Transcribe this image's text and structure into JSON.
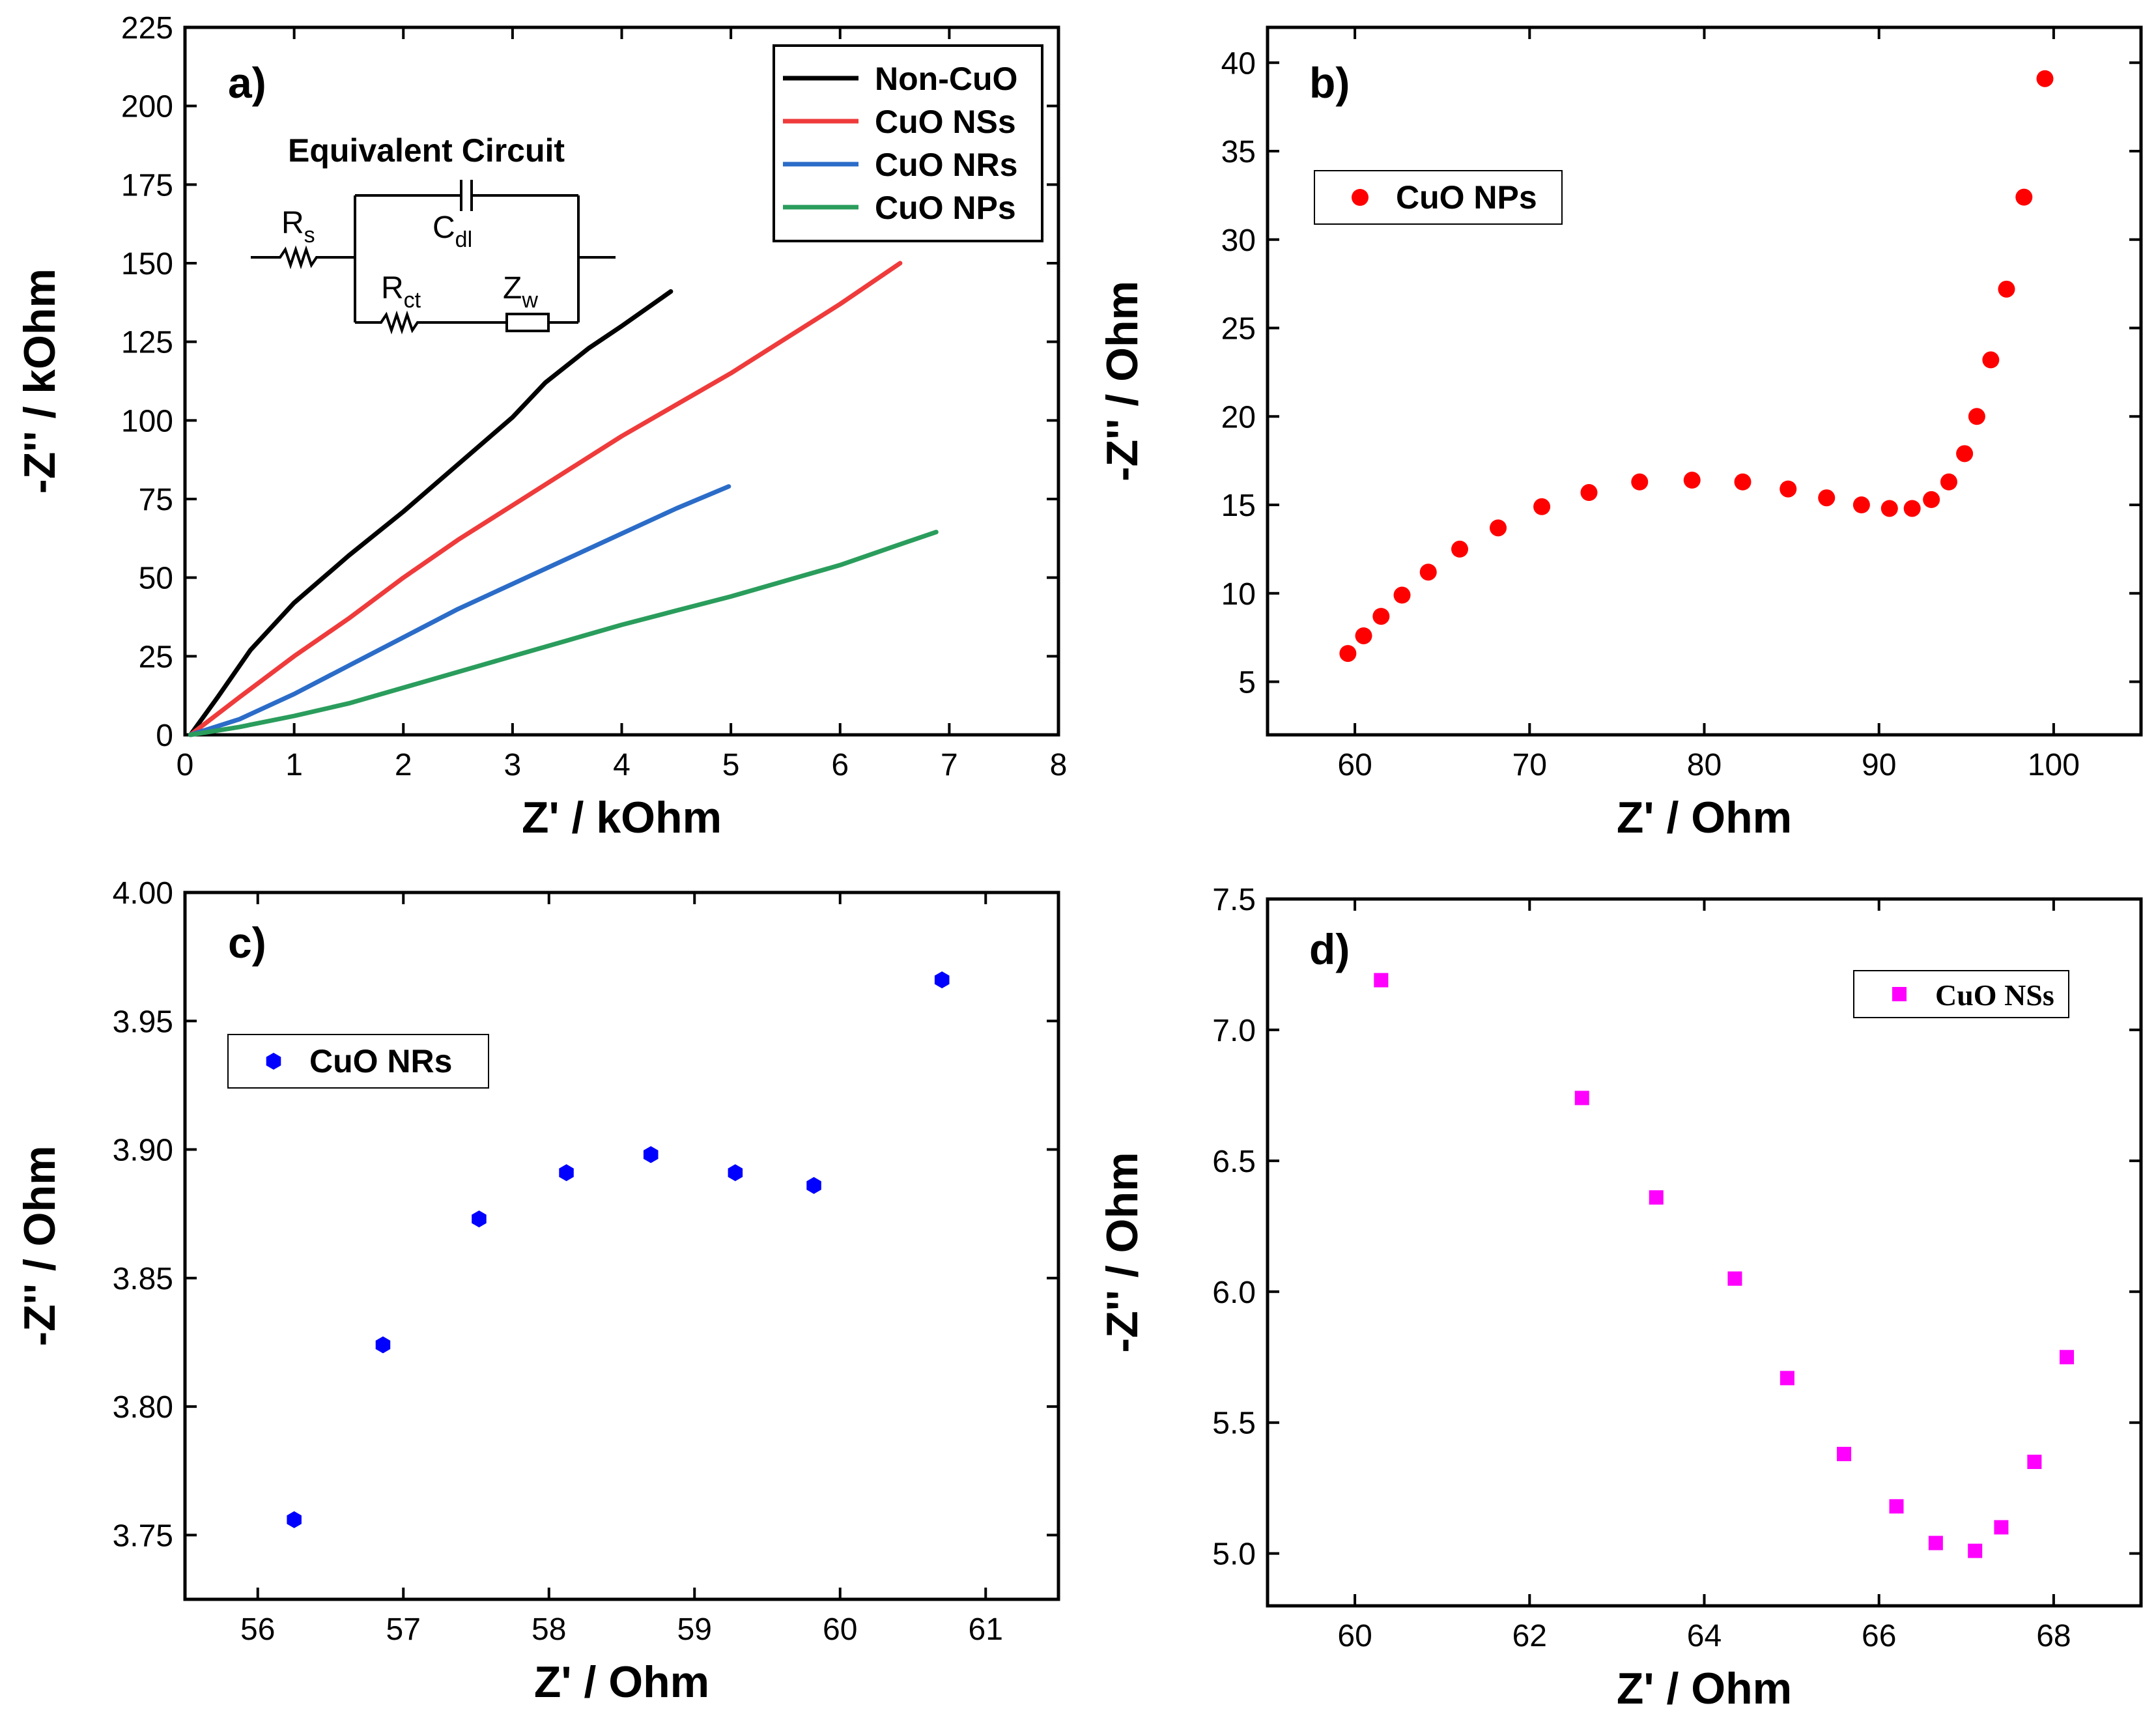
{
  "chart_data": [
    {
      "id": "a",
      "type": "line",
      "panel_label": "a)",
      "xlabel": "Z' / kOhm",
      "ylabel": "-Z'' / kOhm",
      "xlim": [
        0,
        8
      ],
      "ylim": [
        0,
        225
      ],
      "xticks": [
        0,
        1,
        2,
        3,
        4,
        5,
        6,
        7,
        8
      ],
      "yticks": [
        0,
        25,
        50,
        75,
        100,
        125,
        150,
        175,
        200,
        225
      ],
      "legend_position": "top-right",
      "series": [
        {
          "name": "Non-CuO",
          "color": "#000000",
          "x": [
            0.05,
            0.3,
            0.6,
            1.0,
            1.5,
            2.0,
            2.5,
            3.0,
            3.3,
            3.7,
            4.0,
            4.45
          ],
          "y": [
            0,
            12,
            27,
            42,
            57,
            71,
            86,
            101,
            112,
            123,
            130,
            141
          ]
        },
        {
          "name": "CuO NSs",
          "color": "#ef3b3b",
          "x": [
            0.05,
            0.5,
            1.0,
            1.5,
            2.0,
            2.5,
            3.0,
            3.5,
            4.0,
            4.5,
            5.0,
            5.5,
            6.0,
            6.55
          ],
          "y": [
            0,
            12,
            25,
            37,
            50,
            62,
            73,
            84,
            95,
            105,
            115,
            126,
            137,
            150
          ]
        },
        {
          "name": "CuO NRs",
          "color": "#2b6cc8",
          "x": [
            0.05,
            0.5,
            1.0,
            1.5,
            2.0,
            2.5,
            3.0,
            3.5,
            4.0,
            4.5,
            4.98
          ],
          "y": [
            0,
            5,
            13,
            22,
            31,
            40,
            48,
            56,
            64,
            72,
            79
          ]
        },
        {
          "name": "CuO NPs",
          "color": "#2a9d5c",
          "x": [
            0.05,
            0.5,
            1.0,
            1.5,
            2.0,
            2.5,
            3.0,
            3.5,
            4.0,
            4.5,
            5.0,
            5.5,
            6.0,
            6.5,
            6.88
          ],
          "y": [
            0,
            2.5,
            6,
            10,
            15,
            20,
            25,
            30,
            35,
            39.5,
            44,
            49,
            54,
            60,
            64.5
          ]
        }
      ],
      "inset": {
        "title": "Equivalent Circuit",
        "labels": {
          "rs": {
            "main": "R",
            "sub": "s"
          },
          "cdl": {
            "main": "C",
            "sub": "dl"
          },
          "rct": {
            "main": "R",
            "sub": "ct"
          },
          "zw": {
            "main": "Z",
            "sub": "w"
          }
        }
      }
    },
    {
      "id": "b",
      "type": "scatter",
      "panel_label": "b)",
      "xlabel": "Z' / Ohm",
      "ylabel": "-Z'' / Ohm",
      "xlim": [
        55,
        105
      ],
      "ylim": [
        2,
        42
      ],
      "xticks": [
        60,
        70,
        80,
        90,
        100
      ],
      "yticks": [
        5,
        10,
        15,
        20,
        25,
        30,
        35,
        40
      ],
      "legend_position": "top-left",
      "series": [
        {
          "name": "CuO NPs",
          "color": "#ff0000",
          "marker": "circle",
          "x": [
            59.6,
            60.5,
            61.5,
            62.7,
            64.2,
            66.0,
            68.2,
            70.7,
            73.4,
            76.3,
            79.3,
            82.2,
            84.8,
            87.0,
            89.0,
            90.6,
            91.9,
            93.0,
            94.0,
            94.9,
            95.6,
            96.4,
            97.3,
            98.3,
            99.5
          ],
          "y": [
            6.6,
            7.6,
            8.7,
            9.9,
            11.2,
            12.5,
            13.7,
            14.9,
            15.7,
            16.3,
            16.4,
            16.3,
            15.9,
            15.4,
            15.0,
            14.8,
            14.8,
            15.3,
            16.3,
            17.9,
            20.0,
            23.2,
            27.2,
            32.4,
            39.1
          ]
        }
      ]
    },
    {
      "id": "c",
      "type": "scatter",
      "panel_label": "c)",
      "xlabel": "Z' / Ohm",
      "ylabel": "-Z'' / Ohm",
      "xlim": [
        55.5,
        61.5
      ],
      "ylim": [
        3.725,
        4.0
      ],
      "xticks": [
        56,
        57,
        58,
        59,
        60,
        61
      ],
      "yticks": [
        3.75,
        3.8,
        3.85,
        3.9,
        3.95,
        4.0
      ],
      "legend_position": "top-left",
      "series": [
        {
          "name": "CuO NRs",
          "color": "#0000ff",
          "marker": "hexagon",
          "x": [
            56.25,
            56.86,
            57.52,
            58.12,
            58.7,
            59.28,
            59.82,
            60.7
          ],
          "y": [
            3.756,
            3.824,
            3.873,
            3.891,
            3.898,
            3.891,
            3.886,
            3.966
          ]
        }
      ]
    },
    {
      "id": "d",
      "type": "scatter",
      "panel_label": "d)",
      "xlabel": "Z' / Ohm",
      "ylabel": "-Z'' / Ohm",
      "xlim": [
        59,
        69
      ],
      "ylim": [
        4.8,
        7.5
      ],
      "xticks": [
        60,
        62,
        64,
        66,
        68
      ],
      "yticks": [
        5.0,
        5.5,
        6.0,
        6.5,
        7.0,
        7.5
      ],
      "legend_position": "top-right",
      "series": [
        {
          "name": "CuO NSs",
          "color": "#ff00ff",
          "marker": "square",
          "x": [
            60.3,
            62.6,
            63.45,
            64.35,
            64.95,
            65.6,
            66.2,
            66.65,
            67.1,
            67.4,
            67.78,
            68.15
          ],
          "y": [
            7.19,
            6.74,
            6.36,
            6.05,
            5.67,
            5.38,
            5.18,
            5.04,
            5.01,
            5.1,
            5.35,
            5.75
          ]
        }
      ]
    }
  ]
}
